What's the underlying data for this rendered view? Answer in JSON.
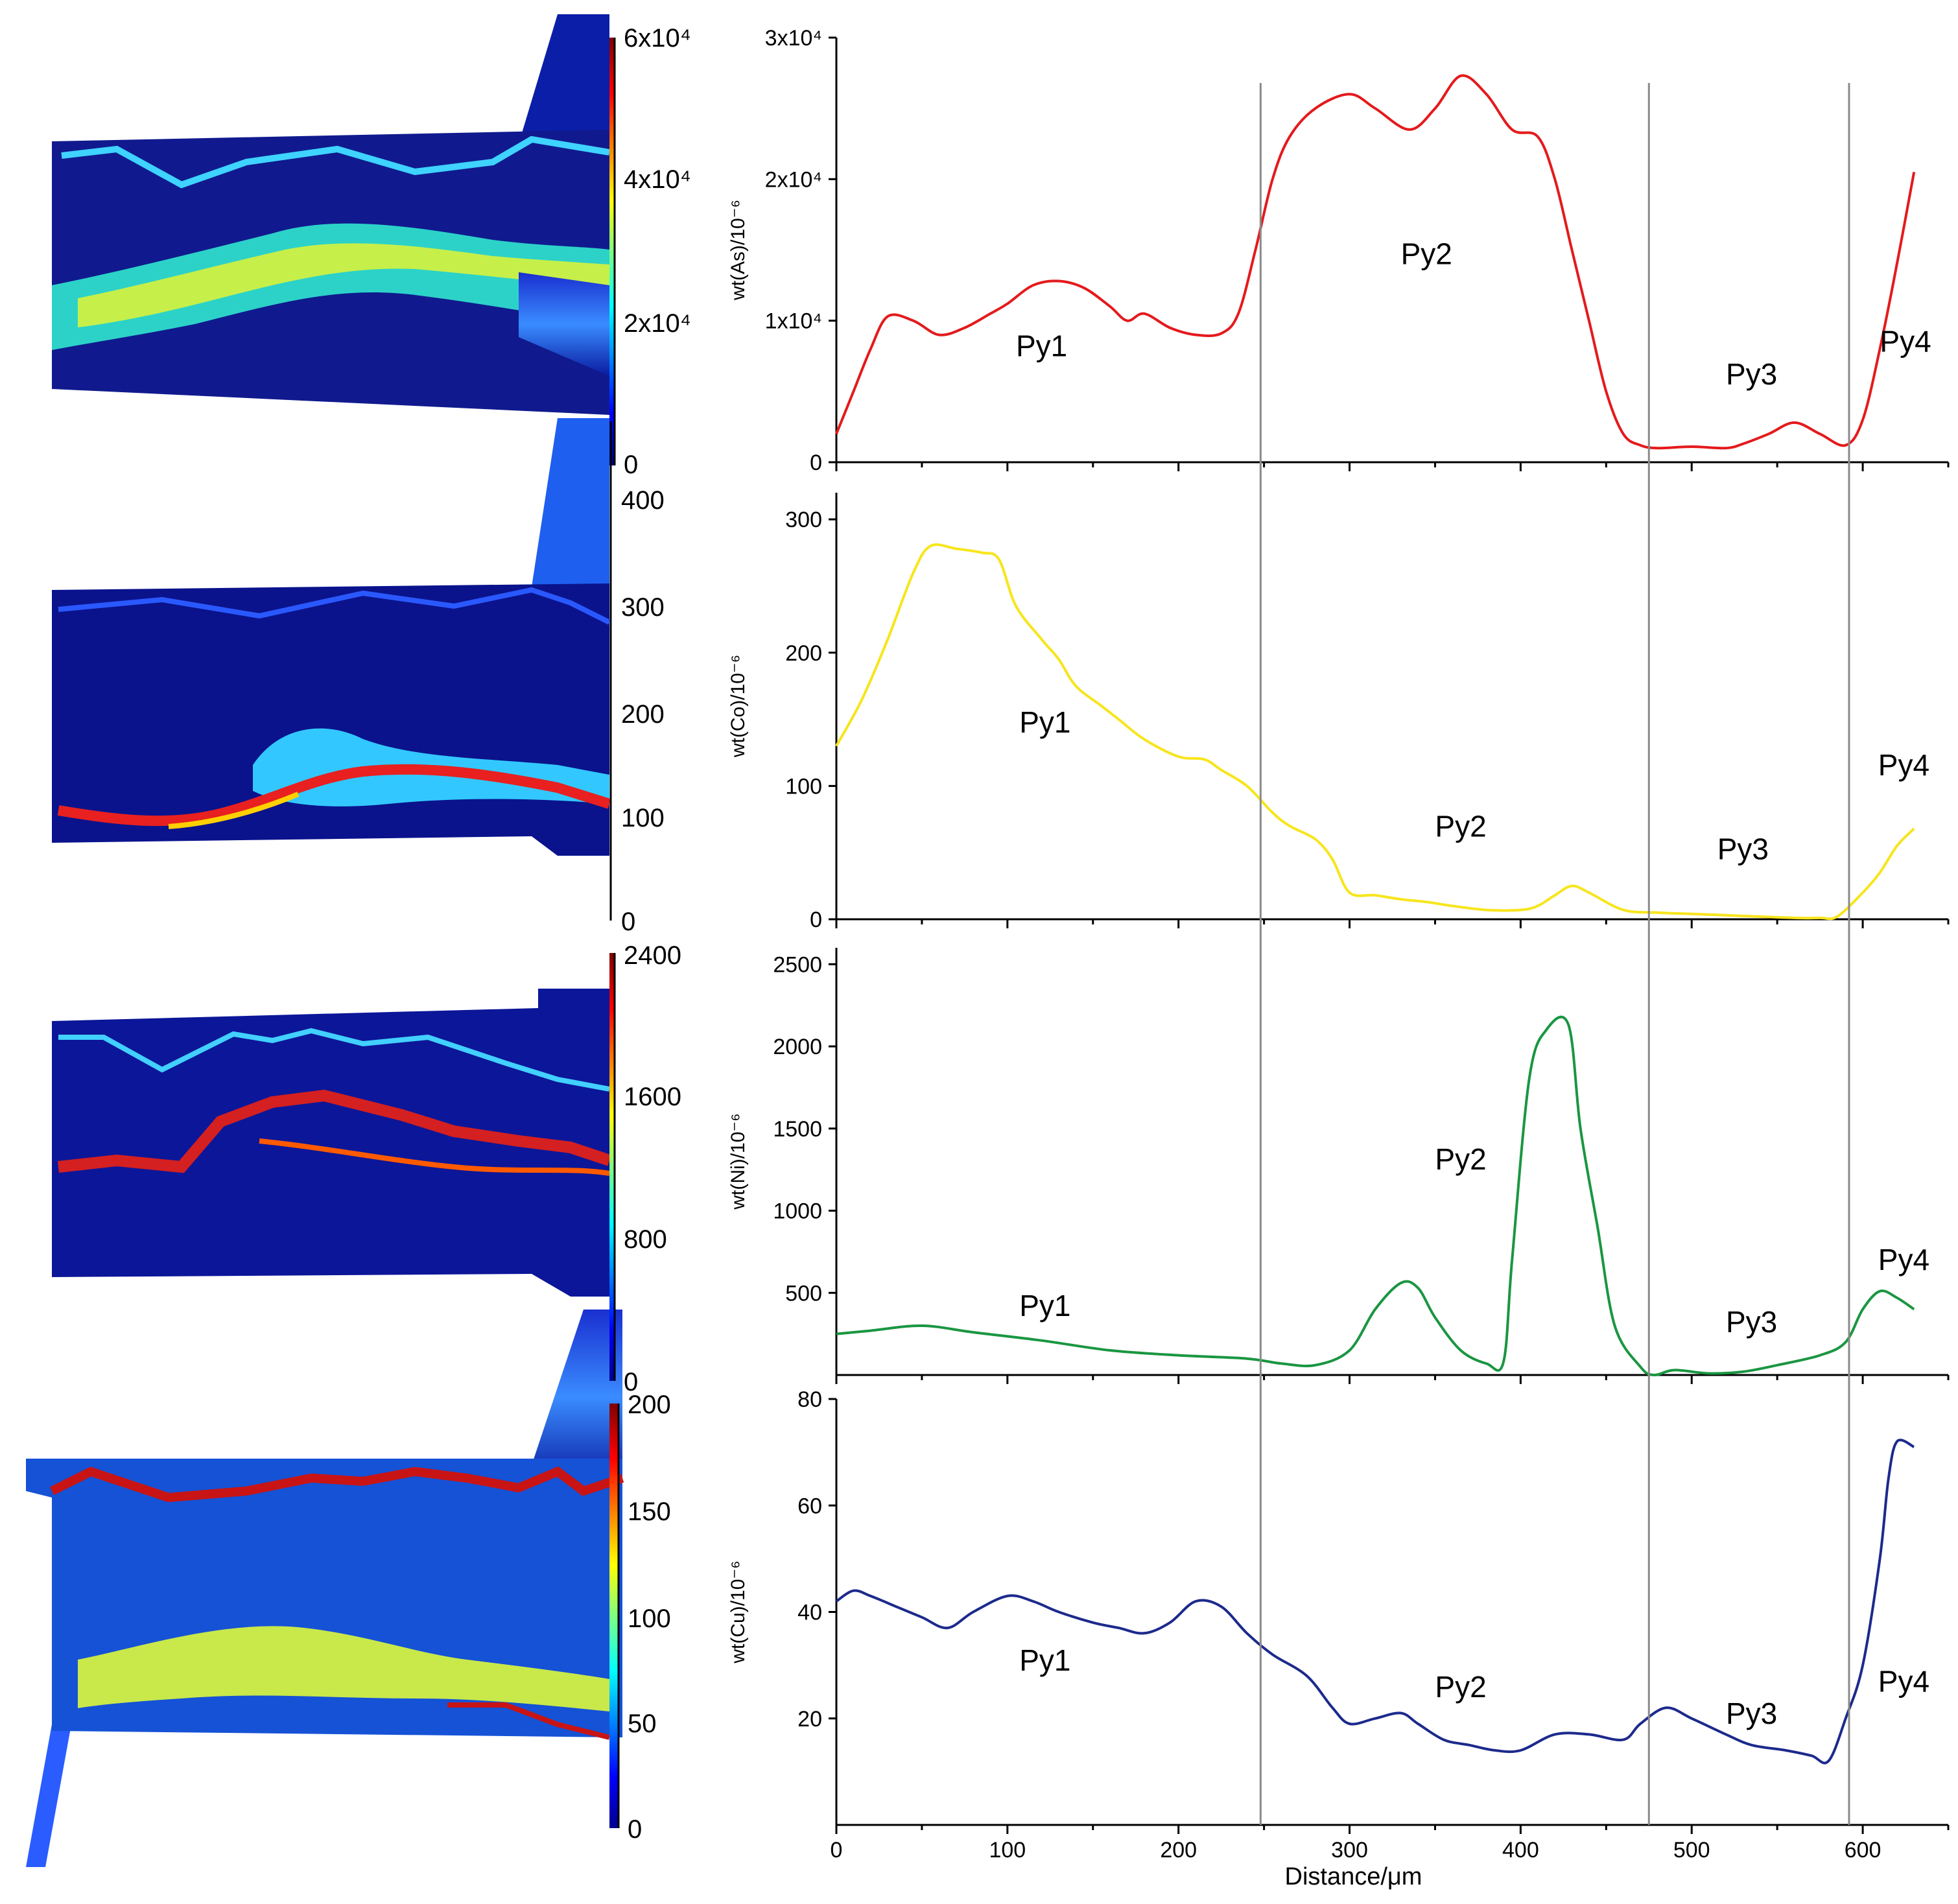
{
  "chart_data": [
    {
      "type": "line",
      "element": "As",
      "ylabel": "wt(As)/10⁻⁶",
      "color": "#e41a1c",
      "ylim": [
        0,
        30000
      ],
      "yticks": [
        {
          "v": 0,
          "t": "0"
        },
        {
          "v": 10000,
          "t": "1x10⁴"
        },
        {
          "v": 20000,
          "t": "2x10⁴"
        },
        {
          "v": 30000,
          "t": "3x10⁴"
        }
      ],
      "x": [
        0,
        10,
        20,
        30,
        45,
        60,
        75,
        90,
        100,
        115,
        130,
        145,
        160,
        170,
        180,
        195,
        210,
        225,
        235,
        245,
        255,
        265,
        280,
        300,
        315,
        335,
        350,
        365,
        380,
        395,
        410,
        420,
        430,
        440,
        450,
        460,
        470,
        480,
        500,
        520,
        530,
        545,
        560,
        575,
        590,
        600,
        610,
        620,
        630
      ],
      "values": [
        2000,
        5000,
        8000,
        10300,
        10000,
        9000,
        9500,
        10500,
        11200,
        12500,
        12800,
        12300,
        11000,
        10000,
        10500,
        9500,
        9000,
        9100,
        10500,
        15000,
        20000,
        23000,
        25000,
        26000,
        25000,
        23500,
        25000,
        27300,
        26000,
        23500,
        23000,
        20000,
        15000,
        10000,
        5000,
        2000,
        1200,
        1000,
        1100,
        1000,
        1300,
        2000,
        2800,
        2000,
        1200,
        3000,
        8000,
        14000,
        20500
      ],
      "labels": [
        {
          "text": "Py1",
          "x": 120,
          "y": 7500
        },
        {
          "text": "Py2",
          "x": 345,
          "y": 14000
        },
        {
          "text": "Py3",
          "x": 535,
          "y": 5500
        },
        {
          "text": "Py4",
          "x": 625,
          "y": 7800
        }
      ]
    },
    {
      "type": "line",
      "element": "Co",
      "ylabel": "wt(Co)/10⁻⁶",
      "color": "#f7e51c",
      "ylim": [
        0,
        320
      ],
      "yticks": [
        {
          "v": 0,
          "t": "0"
        },
        {
          "v": 100,
          "t": "100"
        },
        {
          "v": 200,
          "t": "200"
        },
        {
          "v": 300,
          "t": "300"
        }
      ],
      "x": [
        0,
        15,
        30,
        45,
        55,
        70,
        85,
        95,
        105,
        120,
        130,
        140,
        155,
        165,
        180,
        200,
        215,
        225,
        240,
        255,
        265,
        280,
        290,
        300,
        315,
        330,
        345,
        360,
        380,
        400,
        410,
        420,
        430,
        440,
        460,
        480,
        500,
        520,
        540,
        560,
        575,
        585,
        600,
        610,
        620,
        630
      ],
      "values": [
        130,
        165,
        210,
        260,
        280,
        278,
        275,
        270,
        235,
        210,
        195,
        175,
        160,
        150,
        135,
        122,
        120,
        112,
        100,
        80,
        70,
        60,
        45,
        20,
        18,
        15,
        13,
        10,
        7,
        7,
        10,
        18,
        25,
        20,
        7,
        5,
        4,
        3,
        2,
        1,
        1,
        2,
        20,
        35,
        55,
        68
      ],
      "labels": [
        {
          "text": "Py1",
          "x": 122,
          "y": 140
        },
        {
          "text": "Py2",
          "x": 365,
          "y": 62
        },
        {
          "text": "Py3",
          "x": 530,
          "y": 45
        },
        {
          "text": "Py4",
          "x": 624,
          "y": 108
        }
      ]
    },
    {
      "type": "line",
      "element": "Ni",
      "ylabel": "wt(Ni)/10⁻⁶",
      "color": "#1a9641",
      "ylim": [
        0,
        2600
      ],
      "yticks": [
        {
          "v": 500,
          "t": "500"
        },
        {
          "v": 1000,
          "t": "1000"
        },
        {
          "v": 1500,
          "t": "1500"
        },
        {
          "v": 2000,
          "t": "2000"
        },
        {
          "v": 2500,
          "t": "2500"
        }
      ],
      "x": [
        0,
        20,
        50,
        80,
        120,
        160,
        200,
        240,
        260,
        280,
        300,
        315,
        330,
        340,
        350,
        365,
        380,
        390,
        395,
        405,
        415,
        428,
        435,
        445,
        455,
        470,
        478,
        490,
        510,
        530,
        550,
        575,
        590,
        600,
        610,
        620,
        630
      ],
      "values": [
        250,
        270,
        300,
        260,
        210,
        150,
        120,
        100,
        70,
        60,
        150,
        400,
        560,
        530,
        350,
        150,
        70,
        80,
        700,
        1800,
        2100,
        2130,
        1500,
        900,
        300,
        50,
        0,
        30,
        10,
        20,
        60,
        120,
        200,
        400,
        510,
        470,
        400
      ],
      "labels": [
        {
          "text": "Py1",
          "x": 122,
          "y": 360
        },
        {
          "text": "Py2",
          "x": 365,
          "y": 1250
        },
        {
          "text": "Py3",
          "x": 535,
          "y": 260
        },
        {
          "text": "Py4",
          "x": 624,
          "y": 640
        }
      ]
    },
    {
      "type": "line",
      "element": "Cu",
      "ylabel": "wt(Cu)/10⁻⁶",
      "color": "#1c2a8c",
      "ylim": [
        0,
        80
      ],
      "yticks": [
        {
          "v": 20,
          "t": "20"
        },
        {
          "v": 40,
          "t": "40"
        },
        {
          "v": 60,
          "t": "60"
        },
        {
          "v": 80,
          "t": "80"
        }
      ],
      "x": [
        0,
        10,
        20,
        35,
        50,
        65,
        80,
        100,
        115,
        130,
        150,
        165,
        180,
        195,
        210,
        225,
        240,
        255,
        275,
        290,
        300,
        315,
        330,
        340,
        355,
        370,
        385,
        400,
        420,
        440,
        460,
        470,
        485,
        500,
        520,
        535,
        555,
        570,
        580,
        590,
        600,
        610,
        615,
        620,
        630
      ],
      "values": [
        42,
        44,
        43,
        41,
        39,
        37,
        40,
        43,
        42,
        40,
        38,
        37,
        36,
        38,
        42,
        41,
        36,
        32,
        28,
        22,
        19,
        20,
        21,
        19,
        16,
        15,
        14,
        14,
        17,
        17,
        16,
        19,
        22,
        20,
        17,
        15,
        14,
        13,
        12,
        20,
        30,
        50,
        65,
        72,
        71
      ],
      "labels": [
        {
          "text": "Py1",
          "x": 122,
          "y": 29
        },
        {
          "text": "Py2",
          "x": 365,
          "y": 24
        },
        {
          "text": "Py3",
          "x": 535,
          "y": 19
        },
        {
          "text": "Py4",
          "x": 624,
          "y": 25
        }
      ]
    }
  ],
  "x_axis": {
    "xlim": [
      0,
      650
    ],
    "ticks": [
      "0",
      "100",
      "200",
      "300",
      "400",
      "500",
      "600"
    ],
    "xlabel": "Distance/μm"
  },
  "zone_boundaries": [
    248,
    475,
    592
  ],
  "colorbars": [
    {
      "element": "As",
      "ticks": [
        "0",
        "2x10⁴",
        "4x10⁴",
        "6x10⁴"
      ],
      "gradient": [
        "#ff0000",
        "#ffff00",
        "#00ffff",
        "#0000ff"
      ]
    },
    {
      "element": "Co",
      "ticks": [
        "0",
        "100",
        "200",
        "300",
        "400"
      ]
    },
    {
      "element": "Ni",
      "ticks": [
        "0",
        "800",
        "1600",
        "2400"
      ],
      "gradient": [
        "#ff0000",
        "#ffff00",
        "#00ffff",
        "#0000ff"
      ]
    },
    {
      "element": "Cu",
      "ticks": [
        "0",
        "50",
        "100",
        "150",
        "200"
      ],
      "gradient": [
        "#ff0000",
        "#ffff00",
        "#00ffff",
        "#0000ff"
      ]
    }
  ]
}
